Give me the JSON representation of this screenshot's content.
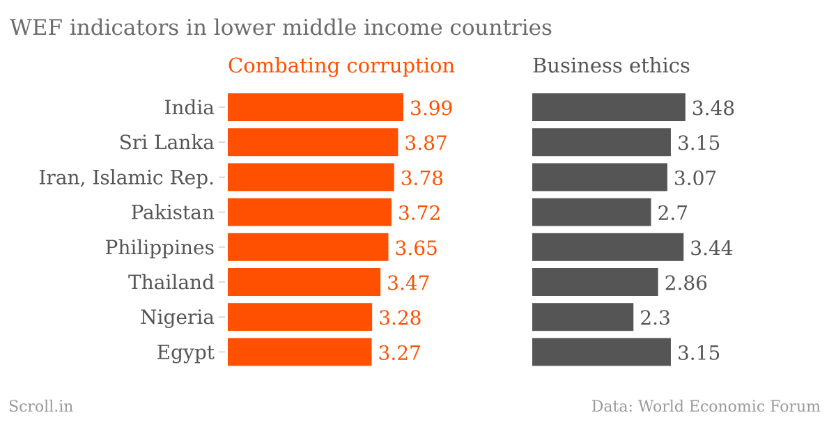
{
  "title": "WEF indicators in lower middle income countries",
  "source_left": "Scroll.in",
  "source_right": "Data: World Economic Forum",
  "colors": {
    "series1": "#fe5000",
    "series2": "#555555",
    "label": "#555555",
    "tick": "#cccccc"
  },
  "chart_data": {
    "type": "bar",
    "orientation": "horizontal",
    "categories": [
      "India",
      "Sri Lanka",
      "Iran, Islamic Rep.",
      "Pakistan",
      "Philippines",
      "Thailand",
      "Nigeria",
      "Egypt"
    ],
    "series": [
      {
        "name": "Combating corruption",
        "values": [
          3.99,
          3.87,
          3.78,
          3.72,
          3.65,
          3.47,
          3.28,
          3.27
        ]
      },
      {
        "name": "Business ethics",
        "values": [
          3.48,
          3.15,
          3.07,
          2.7,
          3.44,
          2.86,
          2.3,
          3.15
        ]
      }
    ],
    "value_labels": [
      [
        "3.99",
        "3.87",
        "3.78",
        "3.72",
        "3.65",
        "3.47",
        "3.28",
        "3.27"
      ],
      [
        "3.48",
        "3.15",
        "3.07",
        "2.7",
        "3.44",
        "2.86",
        "2.3",
        "3.15"
      ]
    ],
    "xlim": [
      0,
      3.99
    ],
    "grid": false,
    "legend": "panel headers"
  }
}
